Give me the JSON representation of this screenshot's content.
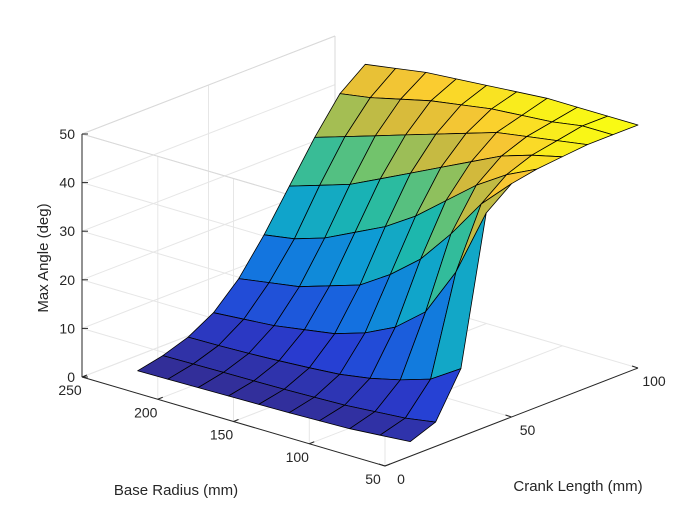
{
  "chart_data": {
    "type": "surface",
    "title": "",
    "xlabel": "Crank Length (mm)",
    "ylabel": "Base Radius (mm)",
    "zlabel": "Max Angle (deg)",
    "xlim": [
      0,
      100
    ],
    "ylim": [
      50,
      250
    ],
    "zlim": [
      0,
      50
    ],
    "x_ticks": [
      0,
      50,
      100
    ],
    "y_ticks": [
      50,
      100,
      150,
      200,
      250
    ],
    "z_ticks": [
      0,
      10,
      20,
      30,
      40,
      50
    ],
    "grid": true,
    "colormap": "parula",
    "edge_color": "#000000",
    "x": [
      10,
      20,
      30,
      40,
      50,
      60,
      70,
      80,
      90,
      100
    ],
    "y": [
      50,
      70,
      90,
      110,
      130,
      150,
      170,
      190,
      210,
      230
    ],
    "z": [
      [
        3,
        5,
        14,
        44,
        48,
        49,
        49.5,
        50,
        50,
        50
      ],
      [
        2.5,
        4,
        10,
        30,
        42,
        46,
        48,
        49,
        50,
        50
      ],
      [
        2,
        3.5,
        8,
        20,
        34,
        42,
        46,
        48,
        49,
        50
      ],
      [
        1.8,
        3,
        6.5,
        15,
        27,
        37,
        43,
        47,
        48.5,
        50
      ],
      [
        1.6,
        2.8,
        5.5,
        12,
        22,
        32,
        40,
        45,
        48,
        49.5
      ],
      [
        1.5,
        2.6,
        5,
        10,
        18,
        28,
        37,
        43,
        47,
        49
      ],
      [
        1.4,
        2.5,
        4.6,
        9,
        16,
        25,
        34,
        41,
        46,
        48.5
      ],
      [
        1.3,
        2.4,
        4.3,
        8,
        14,
        22,
        31,
        39,
        44.5,
        48
      ],
      [
        1.2,
        2.3,
        4.1,
        7.5,
        13,
        20,
        29,
        37,
        43,
        47
      ],
      [
        1.1,
        2.2,
        4,
        7,
        12,
        19,
        27,
        35,
        42,
        46
      ]
    ]
  }
}
